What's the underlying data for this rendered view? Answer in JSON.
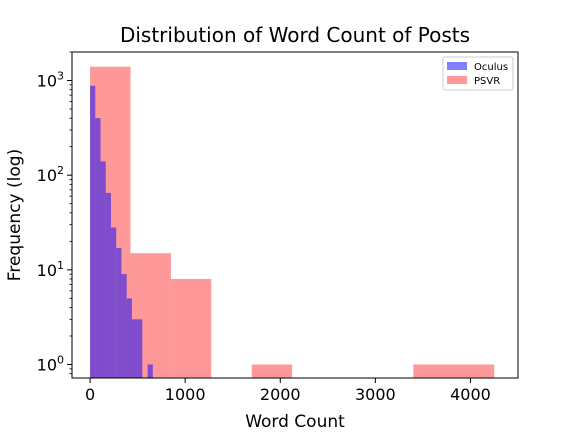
{
  "chart_data": {
    "type": "bar",
    "title": "Distribution of Word Count of Posts",
    "xlabel": "Word Count",
    "ylabel": "Frequency (log)",
    "xlim": [
      -190,
      4500
    ],
    "ylim": [
      0.72,
      2000
    ],
    "yscale": "log",
    "x_ticks": [
      0,
      1000,
      2000,
      3000,
      4000
    ],
    "y_ticks": [
      {
        "value": 1,
        "base": "10",
        "exp": "0"
      },
      {
        "value": 10,
        "base": "10",
        "exp": "1"
      },
      {
        "value": 100,
        "base": "10",
        "exp": "2"
      },
      {
        "value": 1000,
        "base": "10",
        "exp": "3"
      }
    ],
    "grid": false,
    "legend_position": "top-right",
    "series": [
      {
        "name": "Oculus",
        "color": "#0000ff",
        "alpha": 0.5,
        "bins": [
          {
            "x0": 0,
            "x1": 55,
            "count": 880
          },
          {
            "x0": 55,
            "x1": 110,
            "count": 400
          },
          {
            "x0": 110,
            "x1": 165,
            "count": 140
          },
          {
            "x0": 165,
            "x1": 220,
            "count": 65
          },
          {
            "x0": 220,
            "x1": 275,
            "count": 28
          },
          {
            "x0": 275,
            "x1": 330,
            "count": 17
          },
          {
            "x0": 330,
            "x1": 385,
            "count": 9
          },
          {
            "x0": 385,
            "x1": 440,
            "count": 5
          },
          {
            "x0": 440,
            "x1": 495,
            "count": 3
          },
          {
            "x0": 495,
            "x1": 550,
            "count": 3
          },
          {
            "x0": 605,
            "x1": 660,
            "count": 1
          }
        ]
      },
      {
        "name": "PSVR",
        "color": "#ff0000",
        "alpha": 0.4,
        "bins": [
          {
            "x0": 0,
            "x1": 425,
            "count": 1400
          },
          {
            "x0": 425,
            "x1": 850,
            "count": 15
          },
          {
            "x0": 850,
            "x1": 1275,
            "count": 8
          },
          {
            "x0": 1700,
            "x1": 2125,
            "count": 1
          },
          {
            "x0": 3400,
            "x1": 4250,
            "count": 1
          }
        ]
      }
    ]
  }
}
